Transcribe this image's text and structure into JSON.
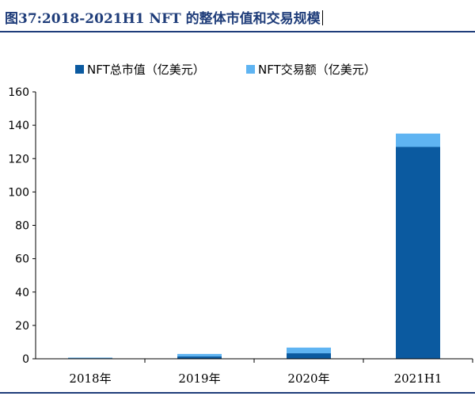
{
  "header": {
    "title": "图37:2018-2021H1 NFT 的整体市值和交易规模"
  },
  "colors": {
    "series1": "#0b5aa0",
    "series2": "#5fb4f2",
    "axis": "#000000",
    "title": "#1f3d7a"
  },
  "chart_data": {
    "type": "bar",
    "stacked": true,
    "title": "",
    "xlabel": "",
    "ylabel": "",
    "ylim": [
      0,
      160
    ],
    "yticks": [
      0,
      20,
      40,
      60,
      80,
      100,
      120,
      140,
      160
    ],
    "categories": [
      "2018年",
      "2019年",
      "2020年",
      "2021H1"
    ],
    "series": [
      {
        "name": "NFT总市值（亿美元）",
        "values": [
          0.4,
          1.4,
          3.3,
          127
        ]
      },
      {
        "name": "NFT交易额（亿美元）",
        "values": [
          0.3,
          1.5,
          3.4,
          8
        ]
      }
    ],
    "legend_position": "top"
  }
}
